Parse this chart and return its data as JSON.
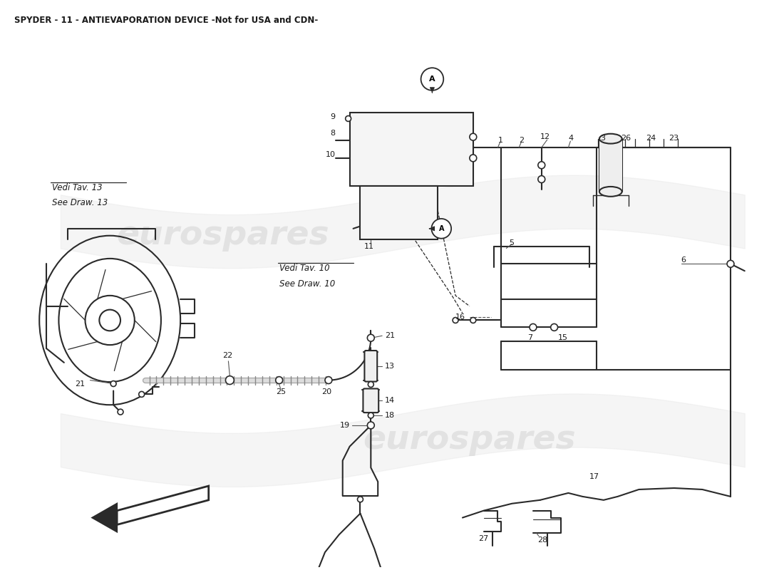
{
  "title": "SPYDER - 11 - ANTIEVAPORATION DEVICE -Not for USA and CDN-",
  "title_fontsize": 8.5,
  "bg_color": "#ffffff",
  "line_color": "#2a2a2a",
  "text_color": "#1a1a1a",
  "watermark_color": "#cccccc",
  "watermark_text": "eurospares",
  "note1_line1": "Vedi Tav. 13",
  "note1_line2": "See Draw. 13",
  "note2_line1": "Vedi Tav. 10",
  "note2_line2": "See Draw. 10"
}
